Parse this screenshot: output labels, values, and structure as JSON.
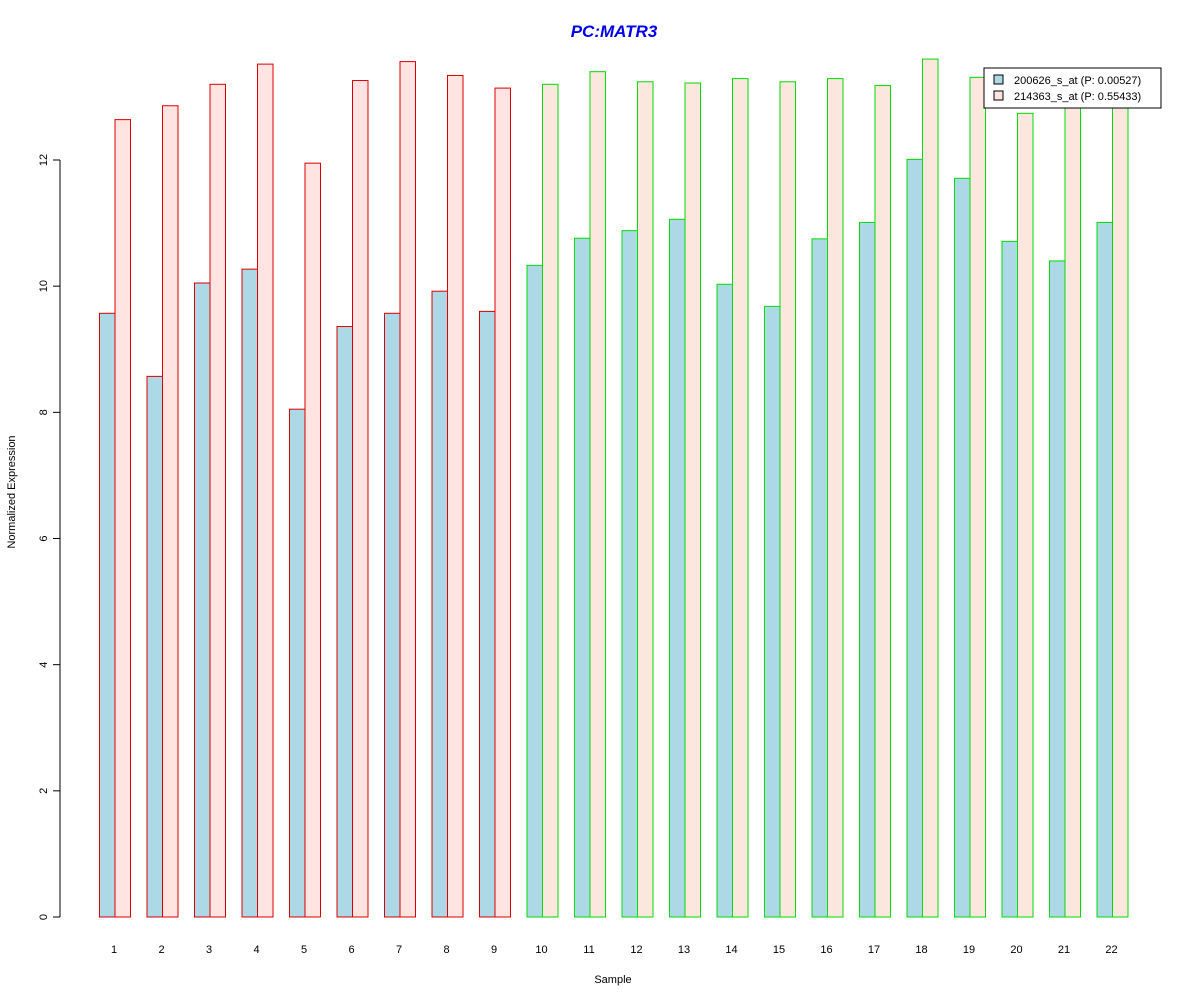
{
  "chart_data": {
    "type": "bar",
    "title": "PC:MATR3",
    "xlabel": "Sample",
    "ylabel": "Normalized Expression",
    "ylim": [
      0,
      13.6
    ],
    "yticks": [
      0,
      2,
      4,
      6,
      8,
      10,
      12
    ],
    "grid": false,
    "legend_position": "top-right",
    "categories": [
      "1",
      "2",
      "3",
      "4",
      "5",
      "6",
      "7",
      "8",
      "9",
      "10",
      "11",
      "12",
      "13",
      "14",
      "15",
      "16",
      "17",
      "18",
      "19",
      "20",
      "21",
      "22"
    ],
    "groups": [
      {
        "range": [
          1,
          9
        ],
        "border_color": "#dd0000"
      },
      {
        "range": [
          10,
          22
        ],
        "border_color": "#00dd00"
      }
    ],
    "series": [
      {
        "name": "200626_s_at (P: 0.00527)",
        "fill": "#add8e6",
        "values": [
          9.57,
          8.57,
          10.05,
          10.27,
          8.05,
          9.36,
          9.57,
          9.92,
          9.6,
          10.33,
          10.76,
          10.88,
          11.06,
          10.03,
          9.68,
          10.75,
          11.01,
          12.01,
          11.71,
          10.71,
          10.4,
          11.01
        ]
      },
      {
        "name": "214363_s_at (P: 0.55433)",
        "fill_group1": "#ffe4e1",
        "fill_group2": "#fbe7de",
        "values": [
          12.64,
          12.86,
          13.2,
          13.52,
          11.95,
          13.26,
          13.56,
          13.34,
          13.14,
          13.2,
          13.4,
          13.24,
          13.22,
          13.29,
          13.24,
          13.29,
          13.18,
          13.6,
          13.31,
          12.74,
          12.93,
          12.93
        ]
      }
    ]
  }
}
